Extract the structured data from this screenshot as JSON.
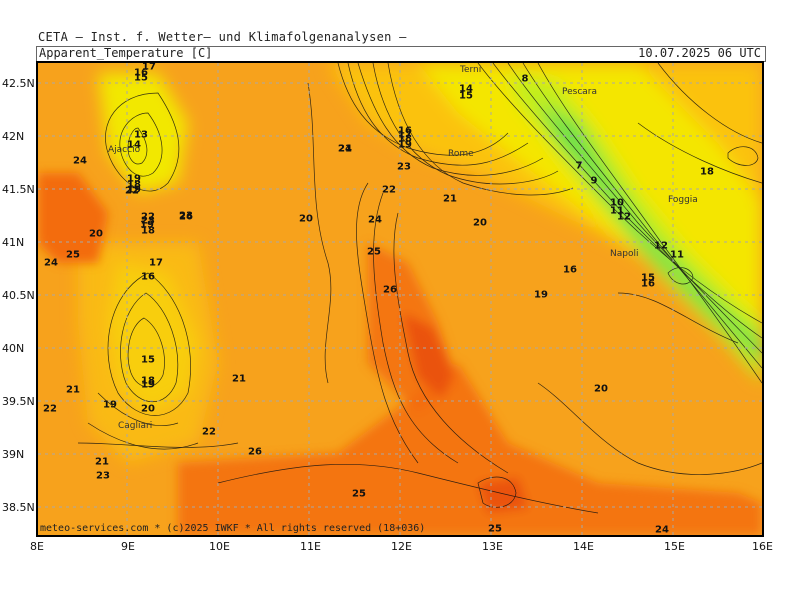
{
  "title": "CETA — Inst. f. Wetter— und Klimafolgenanalysen —",
  "header": {
    "left": "Apparent_Temperature [C]",
    "right": "10.07.2025 06 UTC"
  },
  "footer": "meteo-services.com * (c)2025 IWKF * All rights reserved (18+036)",
  "lat_labels": [
    "42.5N",
    "42N",
    "41.5N",
    "41N",
    "40.5N",
    "40N",
    "39.5N",
    "39N",
    "38.5N"
  ],
  "lon_labels": [
    "8E",
    "9E",
    "10E",
    "11E",
    "12E",
    "13E",
    "14E",
    "15E",
    "16E"
  ],
  "cities": [
    "Terni",
    "Pescara",
    "Rome",
    "Ajaccio",
    "Foggia",
    "Napoli",
    "Cagliari"
  ],
  "contour_values": [
    "17",
    "16",
    "15",
    "13",
    "14",
    "24",
    "19",
    "18",
    "19",
    "22",
    "22",
    "23",
    "26",
    "20",
    "19",
    "18",
    "25",
    "24",
    "17",
    "16",
    "15",
    "18",
    "19",
    "23",
    "22",
    "21",
    "19",
    "20",
    "21",
    "23",
    "22",
    "21",
    "20",
    "24",
    "23",
    "22",
    "21",
    "24",
    "25",
    "26",
    "25",
    "8",
    "14",
    "15",
    "16",
    "17",
    "18",
    "19",
    "21",
    "20",
    "7",
    "9",
    "10",
    "11",
    "12",
    "18",
    "12",
    "11",
    "15",
    "16",
    "16",
    "19",
    "20",
    "24",
    "25",
    "26"
  ],
  "colors": {
    "orange": "#f7a21c",
    "dark_orange": "#f46b0a",
    "yellow": "#fff000",
    "green": "#7ee24a",
    "contour": "#111111",
    "grid": "#a8a8a8"
  }
}
